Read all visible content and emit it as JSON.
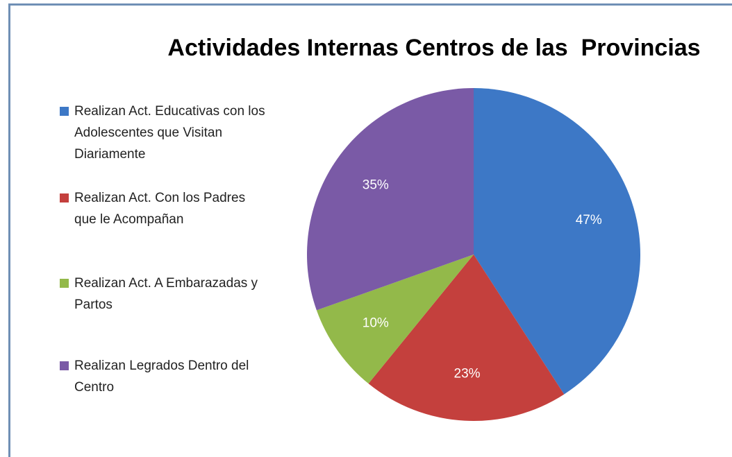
{
  "chart_data": {
    "type": "pie",
    "title": "Actividades Internas Centros de las  Provincias",
    "categories": [
      "Realizan Act. Educativas con los Adolescentes que Visitan Diariamente",
      "Realizan Act. Con los Padres que le Acompañan",
      "Realizan Act. A Embarazadas y Partos",
      "Realizan Legrados Dentro del Centro"
    ],
    "values": [
      47,
      23,
      10,
      35
    ],
    "value_labels": [
      "47%",
      "23%",
      "10%",
      "35%"
    ],
    "colors": [
      "#3d78c6",
      "#c4403d",
      "#93b94a",
      "#7a5aa6"
    ],
    "legend": "left"
  }
}
